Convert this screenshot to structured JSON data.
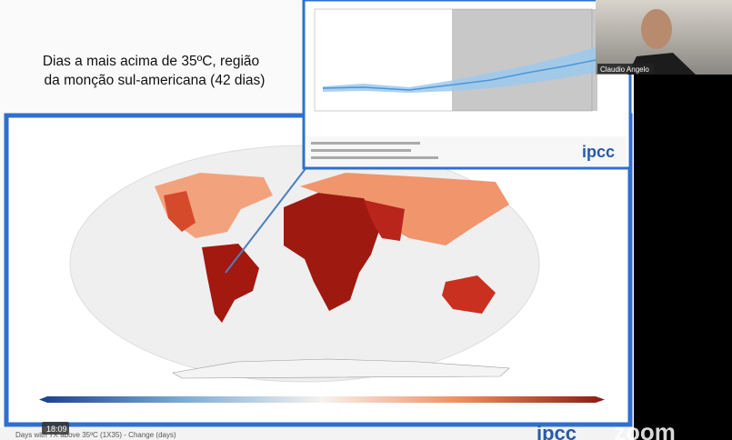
{
  "slide": {
    "title_lines": [
      "Dias a mais acima de 35ºC, região",
      "da monção sul-americana (42 dias)"
    ],
    "caption": "Days with TX above 35ºC (1X35) - Change (days)",
    "logo": "ipcc"
  },
  "inset": {
    "logo": "ipcc"
  },
  "video": {
    "participant": "Claudio Angelo",
    "timestamp": "18:09",
    "app_logo": "zoom"
  }
}
